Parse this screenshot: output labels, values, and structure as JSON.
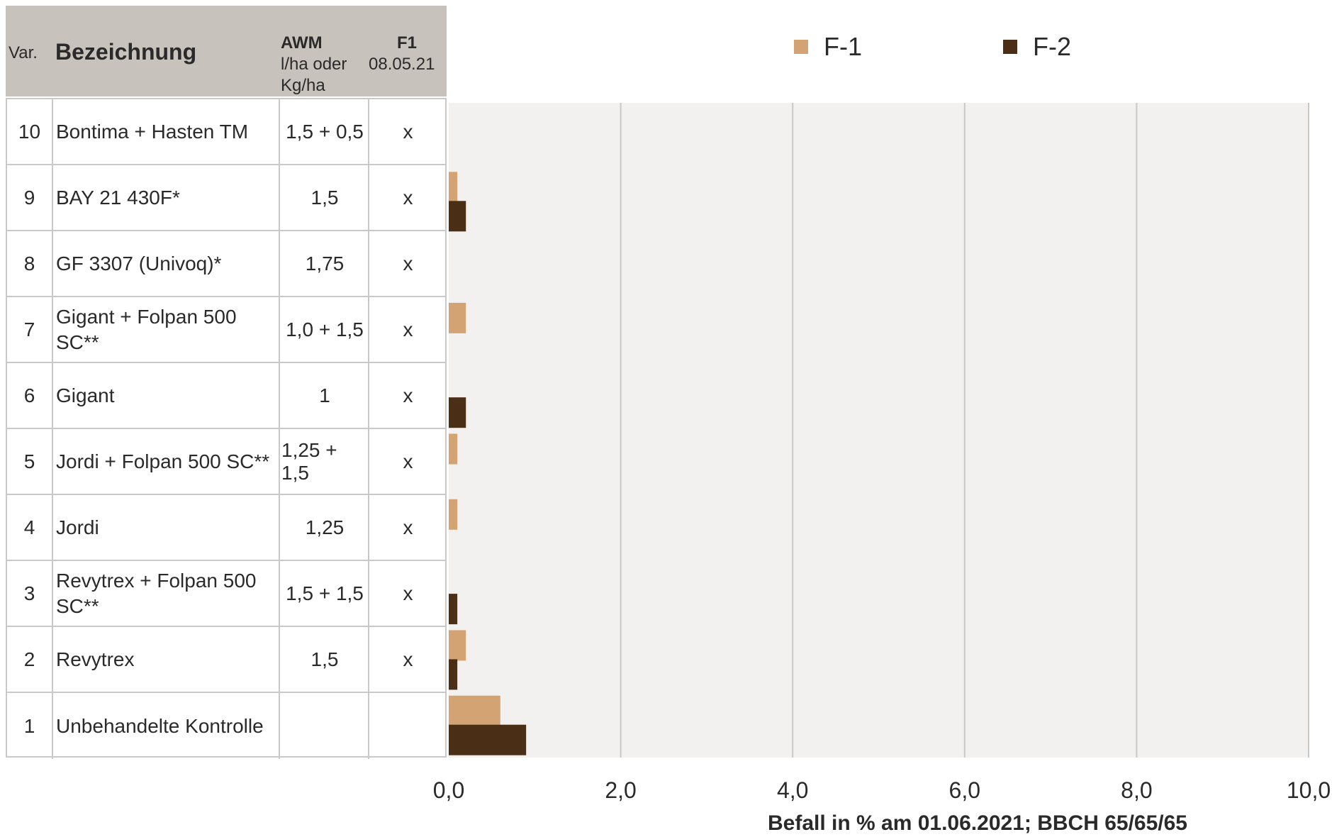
{
  "table": {
    "header": {
      "var": "Var.",
      "bezeichnung": "Bezeichnung",
      "awm": "AWM",
      "awm_unit": "l/ha oder\nKg/ha",
      "f1": "F1",
      "f1_date": "08.05.21"
    },
    "rows": [
      {
        "var": "10",
        "bezeichnung": "Bontima + Hasten TM",
        "awm": "1,5  + 0,5",
        "f1": "x"
      },
      {
        "var": "9",
        "bezeichnung": "BAY 21 430F*",
        "awm": "1,5",
        "f1": "x"
      },
      {
        "var": "8",
        "bezeichnung": "GF 3307 (Univoq)*",
        "awm": "1,75",
        "f1": "x"
      },
      {
        "var": "7",
        "bezeichnung": "Gigant + Folpan 500 SC**",
        "awm": "1,0 + 1,5",
        "f1": "x"
      },
      {
        "var": "6",
        "bezeichnung": "Gigant",
        "awm": "1",
        "f1": "x"
      },
      {
        "var": "5",
        "bezeichnung": "Jordi + Folpan 500 SC**",
        "awm": "1,25 + 1,5",
        "f1": "x"
      },
      {
        "var": "4",
        "bezeichnung": "Jordi",
        "awm": "1,25",
        "f1": "x"
      },
      {
        "var": "3",
        "bezeichnung": "Revytrex + Folpan 500 SC**",
        "awm": "1,5 + 1,5",
        "f1": "x"
      },
      {
        "var": "2",
        "bezeichnung": "Revytrex",
        "awm": "1,5",
        "f1": "x"
      },
      {
        "var": "1",
        "bezeichnung": "Unbehandelte Kontrolle",
        "awm": "",
        "f1": ""
      }
    ]
  },
  "chart_data": {
    "type": "bar",
    "orientation": "horizontal",
    "categories": [
      "10",
      "9",
      "8",
      "7",
      "6",
      "5",
      "4",
      "3",
      "2",
      "1"
    ],
    "series": [
      {
        "name": "F-1",
        "color": "#d4a373",
        "values": [
          0,
          0.1,
          0,
          0.2,
          0,
          0.1,
          0.1,
          0,
          0.2,
          0.6
        ]
      },
      {
        "name": "F-2",
        "color": "#4a2e16",
        "values": [
          0,
          0.2,
          0,
          0,
          0.2,
          0,
          0,
          0.1,
          0.1,
          0.9
        ]
      }
    ],
    "xlabel": "Befall in % am 01.06.2021; BBCH 65/65/65",
    "xlim": [
      0,
      10
    ],
    "xticks": [
      "0,0",
      "2,0",
      "4,0",
      "6,0",
      "8,0",
      "10,0"
    ],
    "grid": true,
    "legend": "top",
    "plot_background": "#f2f1f0",
    "grid_color": "#c8c8c8"
  }
}
